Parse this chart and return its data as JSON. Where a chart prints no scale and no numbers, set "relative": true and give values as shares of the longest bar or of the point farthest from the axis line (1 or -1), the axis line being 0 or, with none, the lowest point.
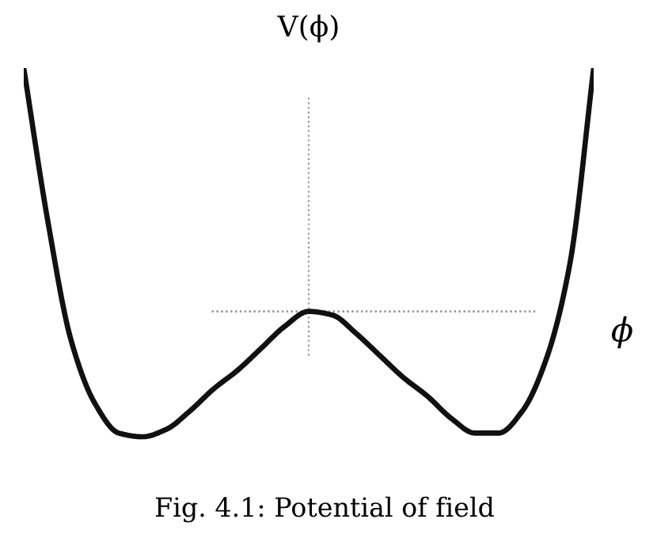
{
  "chart_data": {
    "type": "line",
    "relative": true,
    "ylabel": "V(ϕ)",
    "xlabel": "ϕ",
    "annotations": [
      "Fig. 4.1: Potential of field"
    ],
    "categories": [
      null,
      null,
      null,
      null,
      null,
      null,
      null,
      null,
      null,
      null,
      null,
      null,
      null,
      null,
      null,
      null,
      null,
      null,
      null,
      null,
      null,
      null,
      null,
      null,
      null
    ],
    "series": [
      {
        "color": "#111111",
        "values": [
          1.0,
          0.59,
          0.26,
          0.09,
          0.01,
          0.0,
          0.02,
          0.07,
          0.13,
          0.18,
          0.24,
          0.3,
          0.34,
          0.33,
          0.28,
          0.22,
          0.16,
          0.11,
          0.05,
          0.01,
          0.01,
          0.07,
          0.21,
          0.47,
          1.0
        ]
      }
    ],
    "ref_lines": [
      {
        "axis": "y",
        "value": 0.34,
        "color": "#999999",
        "line_style": "dotted"
      }
    ],
    "marker": "none",
    "line_style": "solid"
  }
}
